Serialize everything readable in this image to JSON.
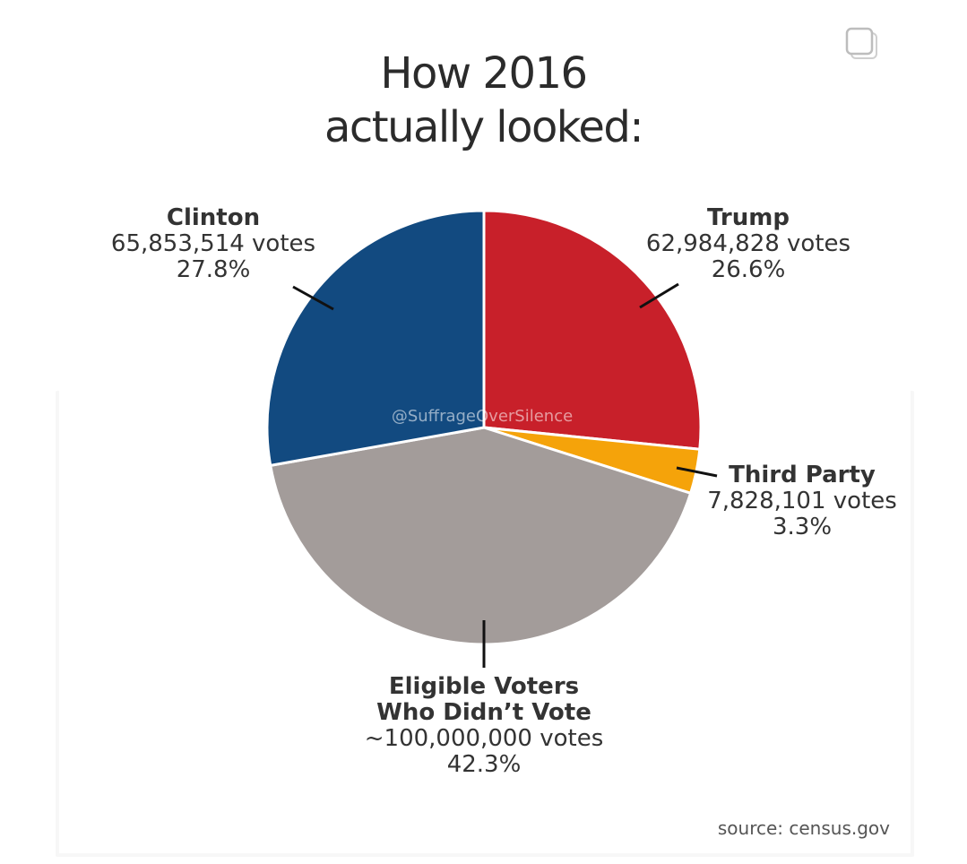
{
  "chart_data": {
    "type": "pie",
    "title": [
      "How 2016",
      "actually looked:"
    ],
    "slices": [
      {
        "name": "Trump",
        "votes": "62,984,828 votes",
        "pct": "26.6%",
        "value": 26.6,
        "color": "#c8202a"
      },
      {
        "name": "Third Party",
        "votes": "7,828,101 votes",
        "pct": "3.3%",
        "value": 3.3,
        "color": "#f5a30a"
      },
      {
        "name": [
          "Eligible Voters",
          "Who Didn’t Vote"
        ],
        "votes": "~100,000,000 votes",
        "pct": "42.3%",
        "value": 42.3,
        "color": "#a39c9a"
      },
      {
        "name": "Clinton",
        "votes": "65,853,514 votes",
        "pct": "27.8%",
        "value": 27.8,
        "color": "#124a80"
      }
    ],
    "watermark": "@SuffrageOverSilence",
    "source": "source: census.gov"
  },
  "icons": {
    "corner": "multiple-images-icon"
  }
}
